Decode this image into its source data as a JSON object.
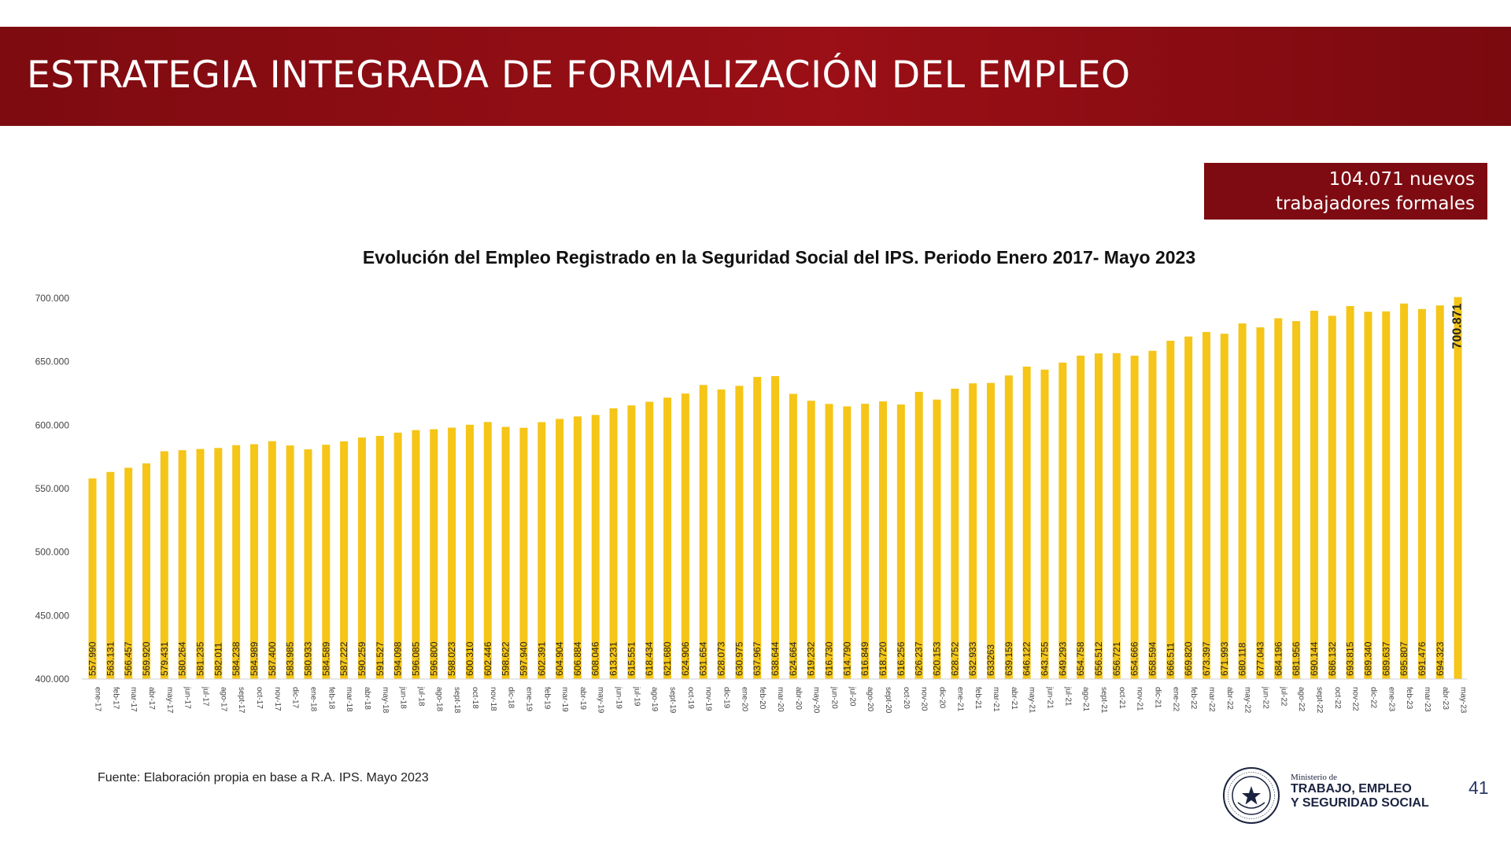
{
  "header": {
    "title": "ESTRATEGIA INTEGRADA DE FORMALIZACIÓN DEL EMPLEO",
    "banner_color": "#9b0f16"
  },
  "callout": {
    "line1": "104.071 nuevos",
    "line2": "trabajadores formales",
    "color": "#7e0b12"
  },
  "chart_data": {
    "type": "bar",
    "title": "Evolución del Empleo Registrado en la Seguridad Social del IPS. Periodo Enero 2017- Mayo 2023",
    "xlabel": "",
    "ylabel": "",
    "ylim": [
      400000,
      700000
    ],
    "yticks": [
      400000,
      450000,
      500000,
      550000,
      600000,
      650000,
      700000
    ],
    "ytick_labels": [
      "400.000",
      "450.000",
      "500.000",
      "550.000",
      "600.000",
      "650.000",
      "700.000"
    ],
    "grid": false,
    "bar_color": "#f5c518",
    "categories": [
      "ene-17",
      "feb-17",
      "mar-17",
      "abr-17",
      "may-17",
      "jun-17",
      "jul-17",
      "ago-17",
      "sept-17",
      "oct-17",
      "nov-17",
      "dic-17",
      "ene-18",
      "feb-18",
      "mar-18",
      "abr-18",
      "may-18",
      "jun-18",
      "jul-18",
      "ago-18",
      "sept-18",
      "oct-18",
      "nov-18",
      "dic-18",
      "ene-19",
      "feb-19",
      "mar-19",
      "abr-19",
      "may-19",
      "jun-19",
      "jul-19",
      "ago-19",
      "sept-19",
      "oct-19",
      "nov-19",
      "dic-19",
      "ene-20",
      "feb-20",
      "mar-20",
      "abr-20",
      "may-20",
      "jun-20",
      "jul-20",
      "ago-20",
      "sept-20",
      "oct-20",
      "nov-20",
      "dic-20",
      "ene-21",
      "feb-21",
      "mar-21",
      "abr-21",
      "may-21",
      "jun-21",
      "jul-21",
      "ago-21",
      "sept-21",
      "oct-21",
      "nov-21",
      "dic-21",
      "ene-22",
      "feb-22",
      "mar-22",
      "abr-22",
      "may-22",
      "jun-22",
      "jul-22",
      "ago-22",
      "sept-22",
      "oct-22",
      "nov-22",
      "dic-22",
      "ene-23",
      "feb-23",
      "mar-23",
      "abr-23",
      "may-23"
    ],
    "values": [
      557990,
      563131,
      566457,
      569920,
      579431,
      580264,
      581235,
      582011,
      584238,
      584989,
      587400,
      583985,
      580933,
      584589,
      587222,
      590259,
      591527,
      594098,
      596085,
      596800,
      598023,
      600310,
      602446,
      598622,
      597940,
      602391,
      604904,
      606884,
      608046,
      613231,
      615551,
      618434,
      621680,
      624906,
      631654,
      628073,
      630975,
      637967,
      638644,
      624664,
      619232,
      616730,
      614790,
      616849,
      618720,
      616256,
      626237,
      620153,
      628752,
      632933,
      633263,
      639159,
      646122,
      643755,
      649293,
      654758,
      656512,
      656721,
      654666,
      658594,
      666511,
      669820,
      673397,
      671993,
      680118,
      677043,
      684196,
      681956,
      690144,
      686132,
      693815,
      689340,
      689637,
      695807,
      691476,
      694323,
      700871
    ],
    "data_labels": [
      "557.990",
      "563.131",
      "566.457",
      "569.920",
      "579.431",
      "580.264",
      "581.235",
      "582.011",
      "584.238",
      "584.989",
      "587.400",
      "583.985",
      "580.933",
      "584.589",
      "587.222",
      "590.259",
      "591.527",
      "594.098",
      "596.085",
      "596.800",
      "598.023",
      "600.310",
      "602.446",
      "598.622",
      "597.940",
      "602.391",
      "604.904",
      "606.884",
      "608.046",
      "613.231",
      "615.551",
      "618.434",
      "621.680",
      "624.906",
      "631.654",
      "628.073",
      "630.975",
      "637.967",
      "638.644",
      "624.664",
      "619.232",
      "616.730",
      "614.790",
      "616.849",
      "618.720",
      "616.256",
      "626.237",
      "620.153",
      "628.752",
      "632.933",
      "633263",
      "639.159",
      "646.122",
      "643.755",
      "649.293",
      "654.758",
      "656.512",
      "656.721",
      "654.666",
      "658.594",
      "666.511",
      "669.820",
      "673.397",
      "671.993",
      "680.118",
      "677.043",
      "684.196",
      "681.956",
      "690.144",
      "686.132",
      "693.815",
      "689.340",
      "689.637",
      "695.807",
      "691.476",
      "694.323",
      "700.871"
    ]
  },
  "footer": {
    "source": "Fuente: Elaboración propia en base a R.A. IPS. Mayo 2023",
    "ministry_small": "Ministerio de",
    "ministry_line1": "TRABAJO, EMPLEO",
    "ministry_line2": "Y SEGURIDAD SOCIAL",
    "seal_text": "REPÚBLICA DEL PARAGUAY",
    "page_number": "41"
  }
}
